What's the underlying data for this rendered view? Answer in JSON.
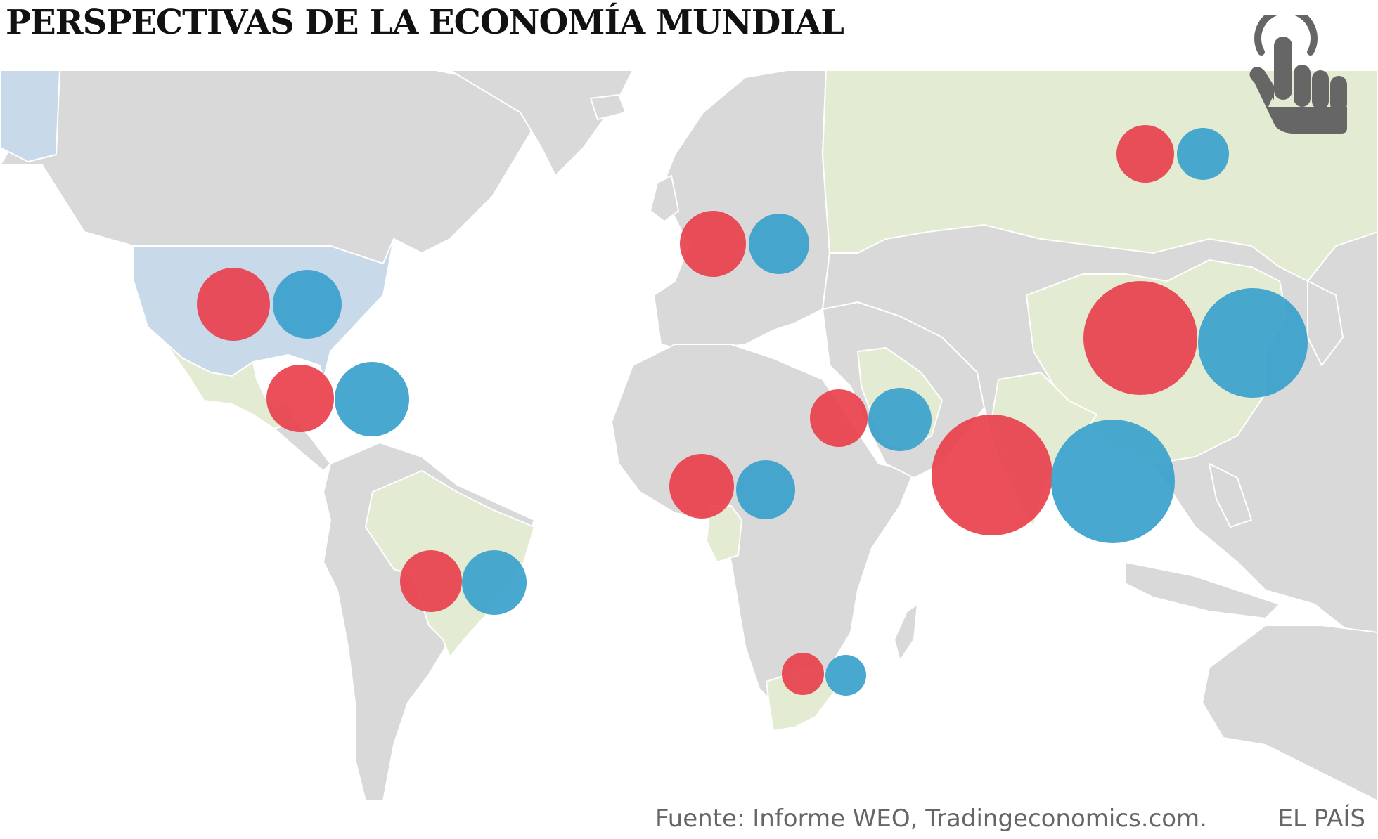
{
  "header": {
    "title": "PERSPECTIVAS DE LA ECONOMÍA MUNDIAL"
  },
  "interaction_icon": "tap-hand-icon",
  "footer": {
    "source": "Fuente:  Informe WEO, Tradingeconomics.com.",
    "brand": "EL PAÍS"
  },
  "colors": {
    "ocean": "#ffffff",
    "land": "#d9d9d9",
    "borders": "#ffffff",
    "highlight_selected": "#c8d9ea",
    "highlight_countries": "#e3ecd2",
    "circle_red": "#e8404c",
    "circle_blue": "#3aa1cc",
    "icon": "#666666"
  },
  "highlighted_countries": [
    "Estados Unidos",
    "México",
    "Brasil",
    "Rusia",
    "China",
    "India",
    "Arabia Saudí",
    "Nigeria",
    "Sudáfrica"
  ],
  "selected_country": "Estados Unidos",
  "markers": [
    {
      "region": "Estados Unidos",
      "lon": -97,
      "lat": 40
    },
    {
      "region": "México",
      "lon": -92,
      "lat": 20
    },
    {
      "region": "Brasil",
      "lon": -49,
      "lat": -15
    },
    {
      "region": "Eurozona",
      "lon": 10,
      "lat": 50
    },
    {
      "region": "Rusia",
      "lon": 100,
      "lat": 63
    },
    {
      "region": "Arabia Saudí",
      "lon": 41,
      "lat": 17
    },
    {
      "region": "Nigeria",
      "lon": 8,
      "lat": 7
    },
    {
      "region": "Sudáfrica",
      "lon": 24,
      "lat": -31
    },
    {
      "region": "India",
      "lon": 79,
      "lat": 8
    },
    {
      "region": "China",
      "lon": 108,
      "lat": 35
    }
  ]
}
